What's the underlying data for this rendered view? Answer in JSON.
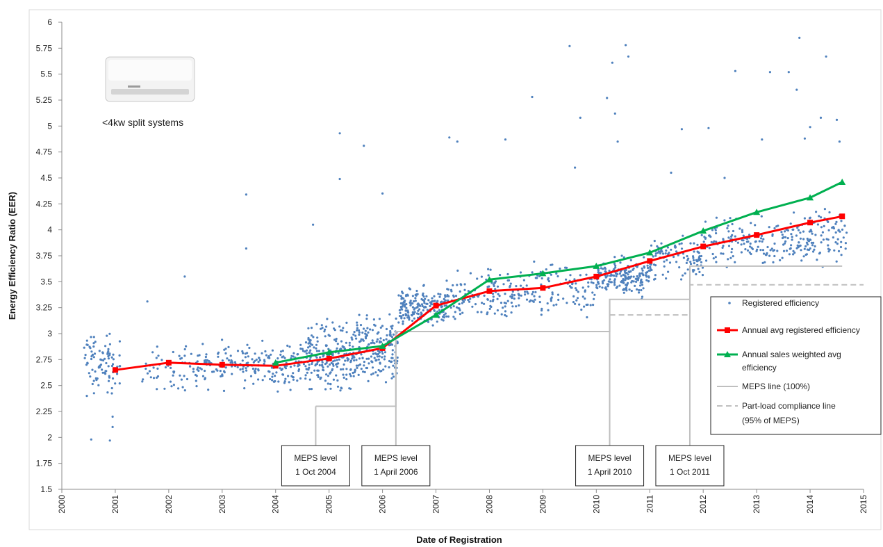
{
  "chart_data": {
    "type": "scatter",
    "title": "",
    "xlabel": "Date of Registration",
    "ylabel": "Energy Efficiency Ratio (EER)",
    "xlim": [
      2000,
      2015
    ],
    "ylim": [
      1.5,
      6
    ],
    "x_ticks": [
      "2000",
      "2001",
      "2002",
      "2003",
      "2004",
      "2005",
      "2006",
      "2007",
      "2008",
      "2009",
      "2010",
      "2011",
      "2012",
      "2013",
      "2014",
      "2015"
    ],
    "y_ticks": [
      "1.5",
      "1.75",
      "2",
      "2.25",
      "2.5",
      "2.75",
      "3",
      "3.25",
      "3.5",
      "3.75",
      "4",
      "4.25",
      "4.5",
      "4.75",
      "5",
      "5.25",
      "5.5",
      "5.75",
      "6"
    ],
    "grid": false,
    "legend_position": "right",
    "image_caption": "<4kw split systems",
    "series": [
      {
        "name": "Registered efficiency",
        "kind": "scatter",
        "color": "#4f81bd",
        "clusters": [
          {
            "x": [
              2000.4,
              2001.1
            ],
            "y": [
              2.3,
              3.1
            ],
            "n": 90
          },
          {
            "x": [
              2001.5,
              2002.5
            ],
            "y": [
              2.35,
              3.0
            ],
            "n": 55
          },
          {
            "x": [
              2002.5,
              2003.5
            ],
            "y": [
              2.4,
              3.0
            ],
            "n": 90
          },
          {
            "x": [
              2003.5,
              2004.5
            ],
            "y": [
              2.4,
              3.0
            ],
            "n": 110
          },
          {
            "x": [
              2004.5,
              2005.5
            ],
            "y": [
              2.35,
              3.2
            ],
            "n": 230
          },
          {
            "x": [
              2005.5,
              2006.3
            ],
            "y": [
              2.35,
              3.3
            ],
            "n": 180
          },
          {
            "x": [
              2006.3,
              2007.2
            ],
            "y": [
              3.0,
              3.5
            ],
            "n": 200
          },
          {
            "x": [
              2007.2,
              2008.5
            ],
            "y": [
              3.05,
              3.7
            ],
            "n": 130
          },
          {
            "x": [
              2008.5,
              2010.0
            ],
            "y": [
              3.05,
              3.8
            ],
            "n": 120
          },
          {
            "x": [
              2010.0,
              2011.0
            ],
            "y": [
              3.3,
              3.8
            ],
            "n": 190
          },
          {
            "x": [
              2011.0,
              2012.0
            ],
            "y": [
              3.45,
              4.0
            ],
            "n": 110
          },
          {
            "x": [
              2012.0,
              2013.5
            ],
            "y": [
              3.55,
              4.2
            ],
            "n": 130
          },
          {
            "x": [
              2013.5,
              2014.7
            ],
            "y": [
              3.6,
              4.3
            ],
            "n": 130
          }
        ],
        "outliers": [
          [
            2000.55,
            1.98
          ],
          [
            2000.9,
            1.97
          ],
          [
            2000.95,
            2.1
          ],
          [
            2000.95,
            2.2
          ],
          [
            2003.45,
            4.34
          ],
          [
            2003.45,
            3.82
          ],
          [
            2005.2,
            4.93
          ],
          [
            2005.2,
            4.49
          ],
          [
            2005.65,
            4.81
          ],
          [
            2007.25,
            4.89
          ],
          [
            2007.4,
            4.85
          ],
          [
            2008.3,
            4.87
          ],
          [
            2008.8,
            5.28
          ],
          [
            2009.5,
            5.77
          ],
          [
            2009.7,
            5.08
          ],
          [
            2010.2,
            5.27
          ],
          [
            2010.3,
            5.61
          ],
          [
            2010.35,
            5.12
          ],
          [
            2010.55,
            5.78
          ],
          [
            2010.6,
            5.67
          ],
          [
            2011.6,
            4.97
          ],
          [
            2012.1,
            4.98
          ],
          [
            2012.6,
            5.53
          ],
          [
            2013.1,
            4.87
          ],
          [
            2013.25,
            5.52
          ],
          [
            2013.6,
            5.52
          ],
          [
            2013.8,
            5.85
          ],
          [
            2013.75,
            5.35
          ],
          [
            2014.0,
            4.99
          ],
          [
            2014.2,
            5.08
          ],
          [
            2014.3,
            5.67
          ],
          [
            2014.5,
            5.06
          ],
          [
            2014.55,
            4.85
          ],
          [
            2009.6,
            4.6
          ],
          [
            2010.4,
            4.85
          ],
          [
            2011.4,
            4.55
          ],
          [
            2012.4,
            4.5
          ],
          [
            2013.9,
            4.88
          ],
          [
            2006.0,
            4.35
          ],
          [
            2004.7,
            4.05
          ],
          [
            2002.3,
            3.55
          ],
          [
            2001.6,
            3.31
          ]
        ]
      },
      {
        "name": "Annual avg registered efficiency",
        "kind": "line",
        "color": "#ff0000",
        "marker": "square",
        "x": [
          2001,
          2002,
          2003,
          2004,
          2005,
          2006,
          2007,
          2008,
          2009,
          2010,
          2011,
          2012,
          2013,
          2014,
          2014.6
        ],
        "y": [
          2.65,
          2.72,
          2.7,
          2.69,
          2.76,
          2.86,
          3.27,
          3.41,
          3.44,
          3.55,
          3.7,
          3.84,
          3.95,
          4.07,
          4.13
        ]
      },
      {
        "name": "Annual sales weighted avg efficiency",
        "kind": "line",
        "color": "#00b050",
        "marker": "triangle",
        "x": [
          2004,
          2005,
          2006,
          2007,
          2008,
          2009,
          2010,
          2011,
          2012,
          2013,
          2014,
          2014.6
        ],
        "y": [
          2.72,
          2.82,
          2.88,
          3.18,
          3.52,
          3.58,
          3.65,
          3.78,
          3.99,
          4.17,
          4.31,
          4.46
        ]
      },
      {
        "name": "MEPS line (100%)",
        "kind": "step",
        "color": "#bfbfbf",
        "dash": "solid",
        "x": [
          2004.75,
          2006.25,
          2006.25,
          2010.25,
          2010.25,
          2011.75,
          2011.75,
          2014.6
        ],
        "y": [
          2.3,
          2.3,
          3.02,
          3.02,
          3.33,
          3.33,
          3.65,
          3.65
        ]
      },
      {
        "name": "Part-load compliance line\n(95% of MEPS)",
        "kind": "step",
        "color": "#bfbfbf",
        "dash": "dashed",
        "x": [
          2010.25,
          2011.75,
          2011.75,
          2015.0
        ],
        "y": [
          3.18,
          3.18,
          3.47,
          3.47
        ]
      }
    ],
    "annotations": [
      {
        "x": 2004.75,
        "lines": [
          "MEPS level",
          "1 Oct 2004"
        ]
      },
      {
        "x": 2006.25,
        "lines": [
          "MEPS level",
          "1 April 2006"
        ]
      },
      {
        "x": 2010.25,
        "lines": [
          "MEPS level",
          "1 April 2010"
        ]
      },
      {
        "x": 2011.75,
        "lines": [
          "MEPS level",
          "1 Oct 2011"
        ]
      }
    ]
  }
}
